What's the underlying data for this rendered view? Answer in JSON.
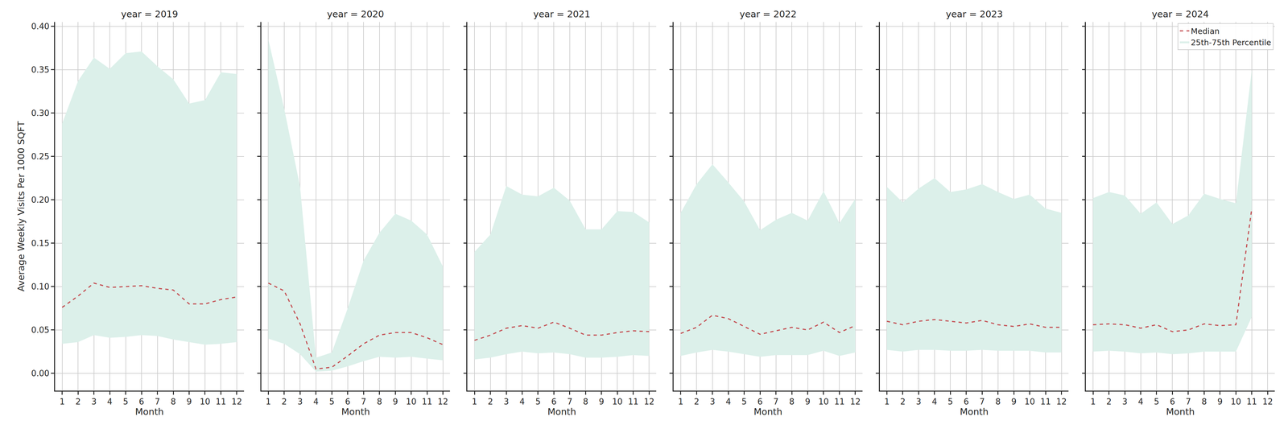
{
  "chart_data": [
    {
      "type": "line",
      "title": "year = 2019",
      "x_label": "Month",
      "y_label": "Average Weekly Visits Per 1000 SQFT",
      "x": [
        1,
        2,
        3,
        4,
        5,
        6,
        7,
        8,
        9,
        10,
        11,
        12
      ],
      "series": [
        {
          "name": "Median",
          "color": "#c44e52",
          "line_style": "dashed",
          "values": [
            0.076,
            0.089,
            0.104,
            0.099,
            0.1,
            0.101,
            0.098,
            0.096,
            0.08,
            0.08,
            0.085,
            0.088
          ]
        },
        {
          "name": "25th-75th Percentile",
          "type": "area",
          "color": "#dcf0ea",
          "lower": [
            0.034,
            0.036,
            0.044,
            0.041,
            0.042,
            0.044,
            0.043,
            0.039,
            0.036,
            0.033,
            0.034,
            0.036
          ],
          "upper": [
            0.288,
            0.337,
            0.364,
            0.351,
            0.369,
            0.371,
            0.354,
            0.339,
            0.311,
            0.315,
            0.347,
            0.345
          ]
        }
      ],
      "xlim": [
        0.55,
        12.45
      ],
      "xticks": [
        1,
        2,
        3,
        4,
        5,
        6,
        7,
        8,
        9,
        10,
        11,
        12
      ],
      "ylim": [
        -0.02,
        0.405
      ],
      "yticks": [
        {
          "value": 0,
          "label": "0.00"
        },
        0.05,
        {
          "value": 0.1,
          "label": "0.10"
        },
        0.15,
        {
          "value": 0.2,
          "label": "0.20"
        },
        0.25,
        {
          "value": 0.3,
          "label": "0.30"
        },
        0.35,
        {
          "value": 0.4,
          "label": "0.40"
        }
      ],
      "grid": true,
      "tick_labels": true
    },
    {
      "type": "line",
      "title": "year = 2020",
      "x_label": "Month",
      "x": [
        1,
        2,
        3,
        4,
        5,
        6,
        7,
        8,
        9,
        10,
        11,
        12
      ],
      "series": [
        {
          "name": "Median",
          "color": "#c44e52",
          "line_style": "dashed",
          "values": [
            0.104,
            0.095,
            0.057,
            0.005,
            0.007,
            0.02,
            0.034,
            0.044,
            0.047,
            0.047,
            0.041,
            0.033
          ]
        },
        {
          "name": "25th-75th Percentile",
          "type": "area",
          "color": "#dcf0ea",
          "lower": [
            0.04,
            0.034,
            0.022,
            0.002,
            0.003,
            0.008,
            0.014,
            0.019,
            0.018,
            0.019,
            0.017,
            0.015
          ],
          "upper": [
            0.385,
            0.305,
            0.215,
            0.018,
            0.024,
            0.075,
            0.13,
            0.162,
            0.184,
            0.176,
            0.16,
            0.123
          ]
        }
      ],
      "xlim": [
        0.55,
        12.45
      ],
      "xticks": [
        1,
        2,
        3,
        4,
        5,
        6,
        7,
        8,
        9,
        10,
        11,
        12
      ],
      "ylim": [
        -0.02,
        0.405
      ],
      "yticks": [
        {
          "value": 0,
          "label": "0.00"
        },
        0.05,
        {
          "value": 0.1,
          "label": "0.10"
        },
        0.15,
        {
          "value": 0.2,
          "label": "0.20"
        },
        0.25,
        {
          "value": 0.3,
          "label": "0.30"
        },
        0.35,
        {
          "value": 0.4,
          "label": "0.40"
        }
      ],
      "grid": true,
      "tick_labels": "x"
    },
    {
      "type": "line",
      "title": "year = 2021",
      "x_label": "Month",
      "x": [
        1,
        2,
        3,
        4,
        5,
        6,
        7,
        8,
        9,
        10,
        11,
        12
      ],
      "series": [
        {
          "name": "Median",
          "color": "#c44e52",
          "line_style": "dashed",
          "values": [
            0.038,
            0.044,
            0.052,
            0.055,
            0.052,
            0.059,
            0.052,
            0.044,
            0.044,
            0.047,
            0.049,
            0.048
          ]
        },
        {
          "name": "25th-75th Percentile",
          "type": "area",
          "color": "#dcf0ea",
          "lower": [
            0.016,
            0.018,
            0.022,
            0.025,
            0.023,
            0.024,
            0.022,
            0.018,
            0.018,
            0.019,
            0.021,
            0.02
          ],
          "upper": [
            0.14,
            0.16,
            0.216,
            0.206,
            0.204,
            0.214,
            0.199,
            0.166,
            0.166,
            0.187,
            0.186,
            0.174
          ]
        }
      ],
      "xlim": [
        0.55,
        12.45
      ],
      "xticks": [
        1,
        2,
        3,
        4,
        5,
        6,
        7,
        8,
        9,
        10,
        11,
        12
      ],
      "ylim": [
        -0.02,
        0.405
      ],
      "yticks": [
        {
          "value": 0,
          "label": "0.00"
        },
        0.05,
        {
          "value": 0.1,
          "label": "0.10"
        },
        0.15,
        {
          "value": 0.2,
          "label": "0.20"
        },
        0.25,
        {
          "value": 0.3,
          "label": "0.30"
        },
        0.35,
        {
          "value": 0.4,
          "label": "0.40"
        }
      ],
      "grid": true,
      "tick_labels": "x"
    },
    {
      "type": "line",
      "title": "year = 2022",
      "x_label": "Month",
      "x": [
        1,
        2,
        3,
        4,
        5,
        6,
        7,
        8,
        9,
        10,
        11,
        12
      ],
      "series": [
        {
          "name": "Median",
          "color": "#c44e52",
          "line_style": "dashed",
          "values": [
            0.046,
            0.053,
            0.067,
            0.063,
            0.054,
            0.045,
            0.049,
            0.053,
            0.05,
            0.059,
            0.047,
            0.055
          ]
        },
        {
          "name": "25th-75th Percentile",
          "type": "area",
          "color": "#dcf0ea",
          "lower": [
            0.02,
            0.024,
            0.027,
            0.025,
            0.022,
            0.019,
            0.021,
            0.021,
            0.021,
            0.026,
            0.02,
            0.024
          ],
          "upper": [
            0.185,
            0.218,
            0.241,
            0.22,
            0.198,
            0.165,
            0.177,
            0.185,
            0.176,
            0.21,
            0.173,
            0.201
          ]
        }
      ],
      "xlim": [
        0.55,
        12.45
      ],
      "xticks": [
        1,
        2,
        3,
        4,
        5,
        6,
        7,
        8,
        9,
        10,
        11,
        12
      ],
      "ylim": [
        -0.02,
        0.405
      ],
      "yticks": [
        {
          "value": 0,
          "label": "0.00"
        },
        0.05,
        {
          "value": 0.1,
          "label": "0.10"
        },
        0.15,
        {
          "value": 0.2,
          "label": "0.20"
        },
        0.25,
        {
          "value": 0.3,
          "label": "0.30"
        },
        0.35,
        {
          "value": 0.4,
          "label": "0.40"
        }
      ],
      "grid": true,
      "tick_labels": "x"
    },
    {
      "type": "line",
      "title": "year = 2023",
      "x_label": "Month",
      "x": [
        1,
        2,
        3,
        4,
        5,
        6,
        7,
        8,
        9,
        10,
        11,
        12
      ],
      "series": [
        {
          "name": "Median",
          "color": "#c44e52",
          "line_style": "dashed",
          "values": [
            0.06,
            0.056,
            0.06,
            0.062,
            0.06,
            0.058,
            0.061,
            0.056,
            0.054,
            0.057,
            0.053,
            0.053
          ]
        },
        {
          "name": "25th-75th Percentile",
          "type": "area",
          "color": "#dcf0ea",
          "lower": [
            0.027,
            0.025,
            0.027,
            0.027,
            0.026,
            0.026,
            0.027,
            0.026,
            0.026,
            0.026,
            0.024,
            0.024
          ],
          "upper": [
            0.215,
            0.197,
            0.213,
            0.225,
            0.209,
            0.212,
            0.218,
            0.209,
            0.201,
            0.206,
            0.19,
            0.185
          ]
        }
      ],
      "xlim": [
        0.55,
        12.45
      ],
      "xticks": [
        1,
        2,
        3,
        4,
        5,
        6,
        7,
        8,
        9,
        10,
        11,
        12
      ],
      "ylim": [
        -0.02,
        0.405
      ],
      "yticks": [
        {
          "value": 0,
          "label": "0.00"
        },
        0.05,
        {
          "value": 0.1,
          "label": "0.10"
        },
        0.15,
        {
          "value": 0.2,
          "label": "0.20"
        },
        0.25,
        {
          "value": 0.3,
          "label": "0.30"
        },
        0.35,
        {
          "value": 0.4,
          "label": "0.40"
        }
      ],
      "grid": true,
      "tick_labels": "x"
    },
    {
      "type": "line",
      "title": "year = 2024",
      "x_label": "Month",
      "x": [
        1,
        2,
        3,
        4,
        5,
        6,
        7,
        8,
        9,
        10,
        11
      ],
      "series": [
        {
          "name": "Median",
          "color": "#c44e52",
          "line_style": "dashed",
          "values": [
            0.056,
            0.057,
            0.056,
            0.052,
            0.056,
            0.048,
            0.05,
            0.057,
            0.055,
            0.056,
            0.19
          ]
        },
        {
          "name": "25th-75th Percentile",
          "type": "area",
          "color": "#dcf0ea",
          "lower": [
            0.025,
            0.026,
            0.025,
            0.023,
            0.024,
            0.022,
            0.023,
            0.025,
            0.025,
            0.025,
            0.065
          ],
          "upper": [
            0.202,
            0.209,
            0.205,
            0.184,
            0.197,
            0.172,
            0.182,
            0.207,
            0.201,
            0.196,
            0.35
          ]
        }
      ],
      "xlim": [
        0.55,
        12.45
      ],
      "xticks": [
        1,
        2,
        3,
        4,
        5,
        6,
        7,
        8,
        9,
        10,
        11,
        12
      ],
      "ylim": [
        -0.02,
        0.405
      ],
      "yticks": [
        {
          "value": 0,
          "label": "0.00"
        },
        0.05,
        {
          "value": 0.1,
          "label": "0.10"
        },
        0.15,
        {
          "value": 0.2,
          "label": "0.20"
        },
        0.25,
        {
          "value": 0.3,
          "label": "0.30"
        },
        0.35,
        {
          "value": 0.4,
          "label": "0.40"
        }
      ],
      "grid": true,
      "tick_labels": "x",
      "legend": "upper right"
    }
  ]
}
